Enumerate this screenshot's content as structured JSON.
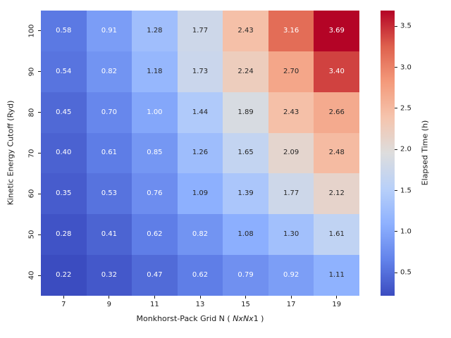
{
  "chart_data": {
    "type": "heatmap",
    "title": "",
    "xlabel": "Monkhorst-Pack Grid N ( NxNx1 )",
    "xlabel_parts": {
      "before_italic": "Monkhorst-Pack Grid N ( ",
      "italic": "NxNx",
      "after_italic": "1 )"
    },
    "ylabel": "Kinetic Energy Cutoff (Ryd)",
    "colorbar_label": "Elapsed Time (h)",
    "x_categories": [
      "7",
      "9",
      "11",
      "13",
      "15",
      "17",
      "19"
    ],
    "y_categories": [
      "100",
      "90",
      "80",
      "70",
      "60",
      "50",
      "40"
    ],
    "values": [
      [
        0.58,
        0.91,
        1.28,
        1.77,
        2.43,
        3.16,
        3.69
      ],
      [
        0.54,
        0.82,
        1.18,
        1.73,
        2.24,
        2.7,
        3.4
      ],
      [
        0.45,
        0.7,
        1.0,
        1.44,
        1.89,
        2.43,
        2.66
      ],
      [
        0.4,
        0.61,
        0.85,
        1.26,
        1.65,
        2.09,
        2.48
      ],
      [
        0.35,
        0.53,
        0.76,
        1.09,
        1.39,
        1.77,
        2.12
      ],
      [
        0.28,
        0.41,
        0.62,
        0.82,
        1.08,
        1.3,
        1.61
      ],
      [
        0.22,
        0.32,
        0.47,
        0.62,
        0.79,
        0.92,
        1.11
      ]
    ],
    "value_format_decimals": 2,
    "vmin": 0.22,
    "vmax": 3.69,
    "colormap": "coolwarm",
    "colorbar_ticks": [
      0.5,
      1.0,
      1.5,
      2.0,
      2.5,
      3.0,
      3.5
    ],
    "colorbar_tick_decimals": 1,
    "legend_position": "right-colorbar",
    "grid": false
  },
  "colors": {
    "cmap_anchors": [
      "#3B4CC0",
      "#6282EA",
      "#8DB0FE",
      "#B8D0F9",
      "#DDDDDD",
      "#F5C4AD",
      "#F49A7B",
      "#DE604D",
      "#B40426"
    ],
    "annot_light": "#FFFFFF",
    "annot_dark": "#262626",
    "axis_text": "#1a1a1a",
    "background": "#FFFFFF"
  }
}
